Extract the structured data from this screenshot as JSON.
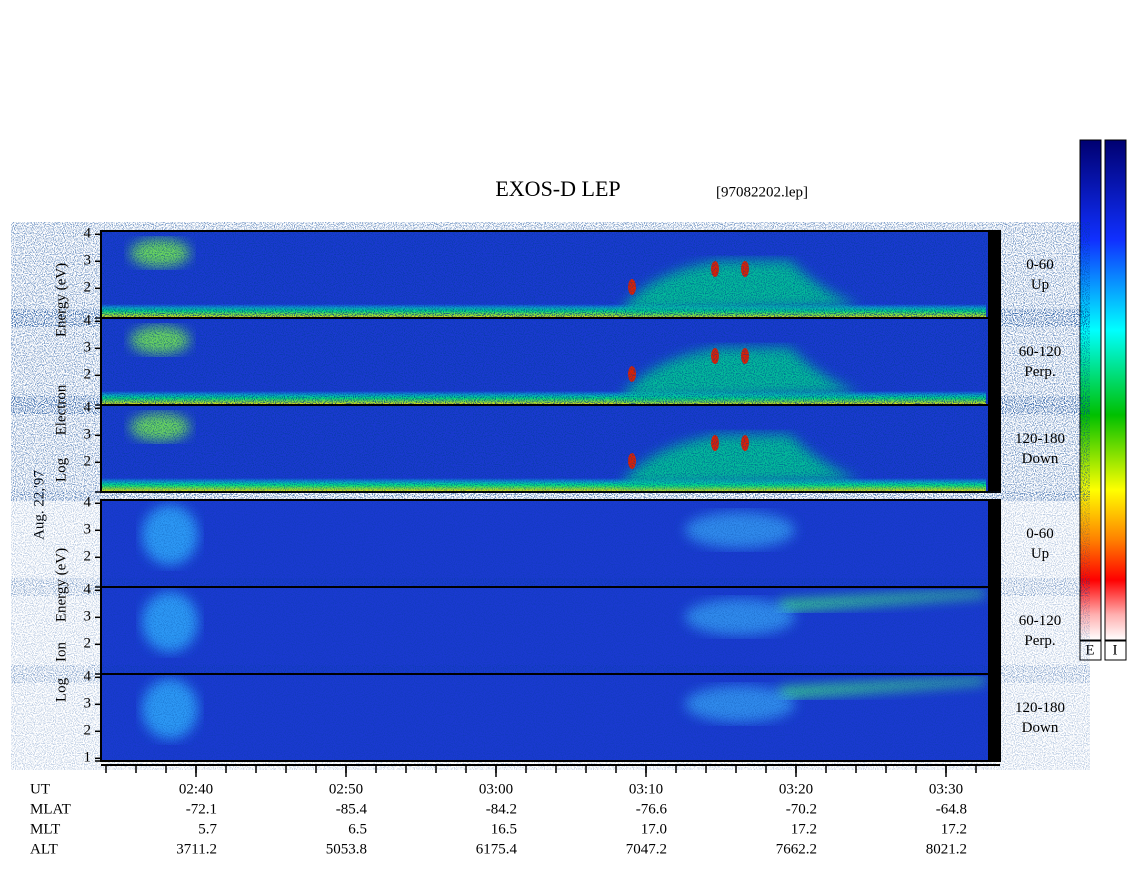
{
  "title": "EXOS-D LEP",
  "file": "[97082202.lep]",
  "date": "Aug. 22,'97",
  "groups": [
    {
      "label_parts": [
        "Log",
        "Electron",
        "Energy (eV)"
      ],
      "panels": [
        {
          "range": "0-60",
          "dir": "Up",
          "yticks": [
            2,
            3,
            4
          ]
        },
        {
          "range": "60-120",
          "dir": "Perp.",
          "yticks": [
            2,
            3,
            4
          ]
        },
        {
          "range": "120-180",
          "dir": "Down",
          "yticks": [
            2,
            3,
            4
          ]
        }
      ]
    },
    {
      "label_parts": [
        "Log",
        "Ion",
        "Energy (eV)"
      ],
      "panels": [
        {
          "range": "0-60",
          "dir": "Up",
          "yticks": [
            2,
            3,
            4
          ]
        },
        {
          "range": "60-120",
          "dir": "Perp.",
          "yticks": [
            2,
            3,
            4
          ]
        },
        {
          "range": "120-180",
          "dir": "Down",
          "yticks": [
            1,
            2,
            3,
            4
          ]
        }
      ]
    }
  ],
  "colorbar_labels": [
    "E",
    "I"
  ],
  "time_axis": {
    "rows": [
      {
        "name": "UT",
        "values": [
          "02:40",
          "02:50",
          "03:00",
          "03:10",
          "03:20",
          "03:30"
        ]
      },
      {
        "name": "MLAT",
        "values": [
          "-72.1",
          "-85.4",
          "-84.2",
          "-76.6",
          "-70.2",
          "-64.8"
        ]
      },
      {
        "name": "MLT",
        "values": [
          "5.7",
          "6.5",
          "16.5",
          "17.0",
          "17.2",
          "17.2"
        ]
      },
      {
        "name": "ALT",
        "values": [
          "3711.2",
          "5053.8",
          "6175.4",
          "7047.2",
          "7662.2",
          "8021.2"
        ]
      }
    ]
  }
}
